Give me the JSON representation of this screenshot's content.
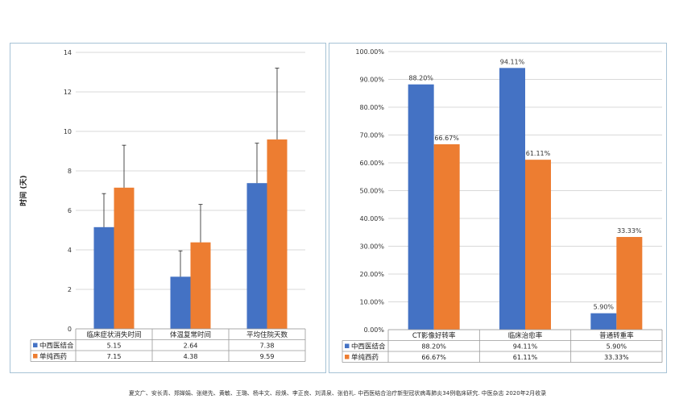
{
  "chart_data": [
    {
      "type": "bar",
      "ylabel": "时间 (天)",
      "ylim": [
        0,
        14
      ],
      "yticks": [
        0,
        2,
        4,
        6,
        8,
        10,
        12,
        14
      ],
      "categories": [
        "临床症状消失时间",
        "体温复常时间",
        "平均住院天数"
      ],
      "series": [
        {
          "name": "中西医结合",
          "color": "#4472c4",
          "values": [
            5.15,
            2.64,
            7.38
          ],
          "table": [
            "5.15",
            "2.64",
            "7.38"
          ],
          "error_upper": [
            6.85,
            3.95,
            9.4
          ]
        },
        {
          "name": "单纯西药",
          "color": "#ed7d31",
          "values": [
            7.15,
            4.38,
            9.59
          ],
          "table": [
            "7.15",
            "4.38",
            "9.59"
          ],
          "error_upper": [
            9.3,
            6.3,
            13.2
          ]
        }
      ],
      "grid": true,
      "legend": "data table"
    },
    {
      "type": "bar",
      "ylim": [
        0,
        100
      ],
      "yticks": [
        "0.00%",
        "10.00%",
        "20.00%",
        "30.00%",
        "40.00%",
        "50.00%",
        "60.00%",
        "70.00%",
        "80.00%",
        "90.00%",
        "100.00%"
      ],
      "categories": [
        "CT影像好转率",
        "临床治愈率",
        "普通转重率"
      ],
      "series": [
        {
          "name": "中西医结合",
          "color": "#4472c4",
          "values": [
            88.2,
            94.11,
            5.9
          ],
          "labels": [
            "88.20%",
            "94.11%",
            "5.90%"
          ]
        },
        {
          "name": "单纯西药",
          "color": "#ed7d31",
          "values": [
            66.67,
            61.11,
            33.33
          ],
          "labels": [
            "66.67%",
            "61.11%",
            "33.33%"
          ]
        }
      ],
      "grid": true,
      "legend": "data table"
    }
  ],
  "footer": "夏文广、安长青、郑婵娟、张继先、黄敏、王璐、杨丰文、段焕、李正良、刘清泉、张伯礼. 中西医结合治疗新型冠状病毒肺炎34例临床研究. 中医杂志 2020年2月收录"
}
